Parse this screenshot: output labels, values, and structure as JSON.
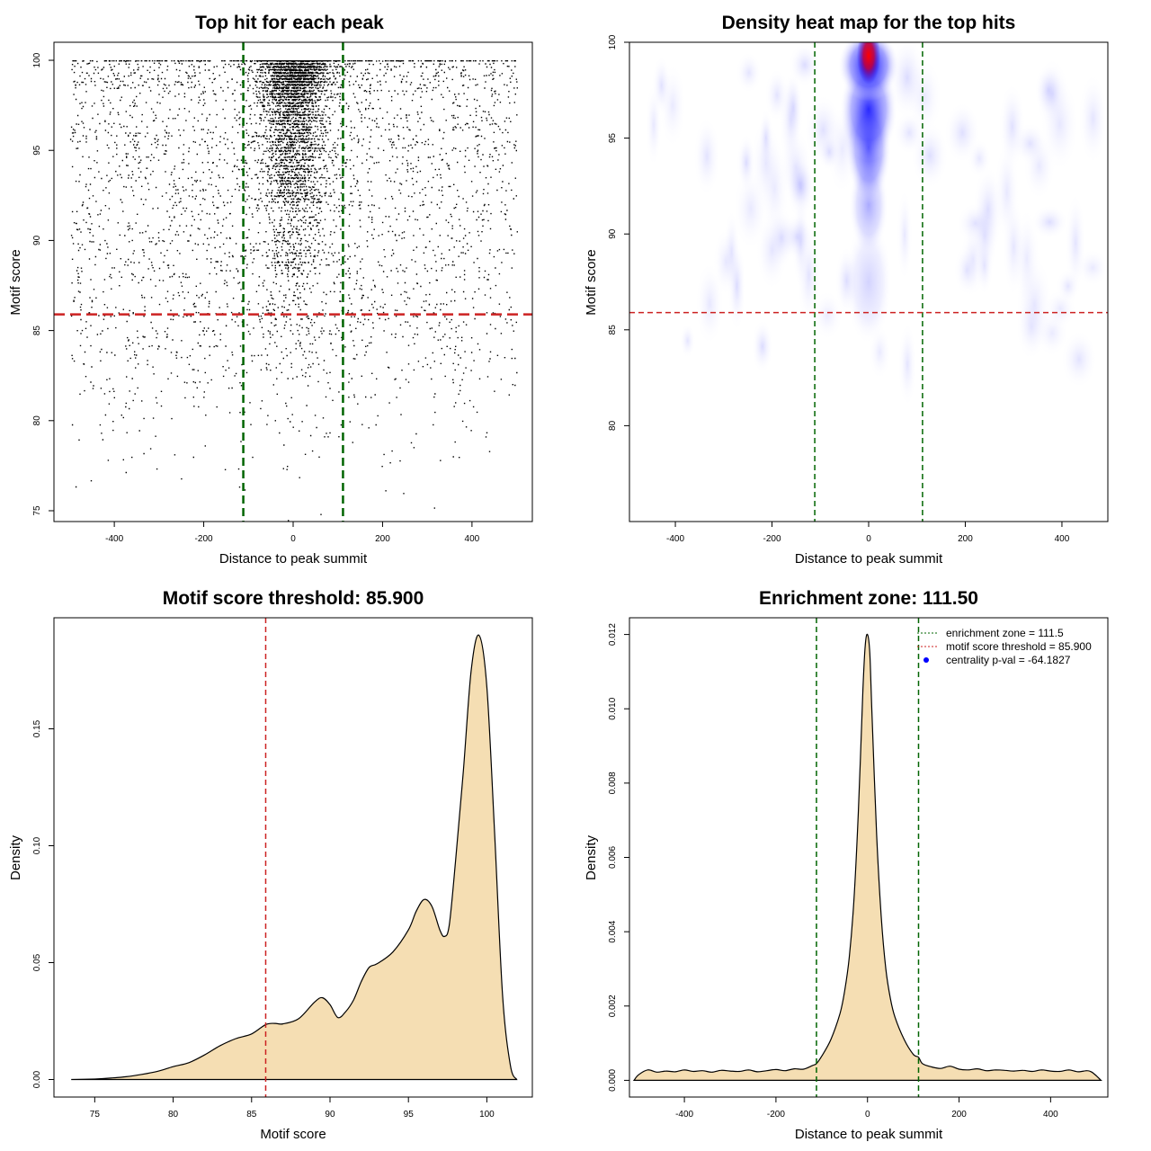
{
  "colors": {
    "green": "#006400",
    "red": "#cc2222",
    "fill": "#f5deb3",
    "point": "#000000",
    "heat_low": "#ffffff",
    "heat_mid": "#0000ff",
    "heat_high": "#ff0000",
    "legend_dot": "#0000ff"
  },
  "chart_data": [
    {
      "id": "scatter",
      "type": "scatter",
      "title": "Top hit for each peak",
      "xlabel": "Distance to peak summit",
      "ylabel": "Motif score",
      "xlim": [
        -535,
        535
      ],
      "ylim": [
        74.4,
        101
      ],
      "xticks": [
        -400,
        -200,
        0,
        200,
        400
      ],
      "yticks": [
        75,
        80,
        85,
        90,
        95,
        100
      ],
      "vlines": [
        -111.5,
        111.5
      ],
      "hline": 85.9,
      "points_described": "about 8000 motif hits; x spread uniformly over -500..500, strongly concentrated within +/-111.5 at high scores; scores 75-100 distributed like the motif score density"
    },
    {
      "id": "heatmap",
      "type": "heatmap",
      "title": "Density heat map for the top hits",
      "xlabel": "Distance to peak summit",
      "ylabel": "Motif score",
      "xlim": [
        -495,
        495
      ],
      "ylim": [
        75,
        100
      ],
      "xticks": [
        -400,
        -200,
        0,
        200,
        400
      ],
      "yticks": [
        80,
        85,
        90,
        95,
        100
      ],
      "vlines": [
        -111.5,
        111.5
      ],
      "hline": 85.9,
      "peak": {
        "x": 0,
        "y": 99.3
      }
    },
    {
      "id": "score_density",
      "type": "area",
      "title": "Motif score threshold: 85.900",
      "xlabel": "Motif score",
      "ylabel": "Density",
      "xlim": [
        72.4,
        102.9
      ],
      "ylim": [
        -0.0075,
        0.1975
      ],
      "xticks": [
        75,
        80,
        85,
        90,
        95,
        100
      ],
      "yticks": [
        0.0,
        0.05,
        0.1,
        0.15
      ],
      "ytick_labels": [
        "0.00",
        "0.05",
        "0.10",
        "0.15"
      ],
      "vline": 85.9,
      "x": [
        73.5,
        75,
        76,
        77,
        78,
        79,
        80,
        81,
        82,
        83,
        84,
        85,
        85.9,
        86.5,
        87,
        88,
        89,
        89.5,
        90,
        90.5,
        91,
        91.5,
        92,
        92.5,
        93,
        94,
        95,
        95.5,
        96,
        96.5,
        97,
        97.3,
        97.6,
        98,
        98.5,
        99,
        99.5,
        100,
        100.5,
        101,
        101.5,
        101.9
      ],
      "y": [
        0.0,
        0.0002,
        0.0006,
        0.0012,
        0.0022,
        0.0035,
        0.0055,
        0.0072,
        0.0105,
        0.0145,
        0.0175,
        0.0195,
        0.0235,
        0.024,
        0.0238,
        0.026,
        0.033,
        0.035,
        0.032,
        0.0265,
        0.029,
        0.034,
        0.042,
        0.048,
        0.0495,
        0.0545,
        0.064,
        0.072,
        0.077,
        0.074,
        0.064,
        0.0612,
        0.066,
        0.093,
        0.132,
        0.175,
        0.19,
        0.168,
        0.105,
        0.036,
        0.006,
        0.0
      ]
    },
    {
      "id": "distance_density",
      "type": "area",
      "title": "Enrichment zone: 111.50",
      "xlabel": "Distance to peak summit",
      "ylabel": "Density",
      "xlim": [
        -520,
        525
      ],
      "ylim": [
        -0.00045,
        0.01245
      ],
      "xticks": [
        -400,
        -200,
        0,
        200,
        400
      ],
      "yticks": [
        0.0,
        0.002,
        0.004,
        0.006,
        0.008,
        0.01,
        0.012
      ],
      "ytick_labels": [
        "0.000",
        "0.002",
        "0.004",
        "0.006",
        "0.008",
        "0.010",
        "0.012"
      ],
      "vlines": [
        -111.5,
        111.5
      ],
      "x": [
        -510,
        -500,
        -480,
        -460,
        -440,
        -420,
        -400,
        -380,
        -360,
        -340,
        -320,
        -300,
        -280,
        -260,
        -240,
        -220,
        -200,
        -180,
        -160,
        -140,
        -120,
        -111.5,
        -100,
        -80,
        -60,
        -50,
        -40,
        -30,
        -20,
        -10,
        -5,
        0,
        5,
        10,
        20,
        30,
        40,
        50,
        60,
        80,
        100,
        111.5,
        120,
        140,
        160,
        180,
        200,
        220,
        240,
        260,
        280,
        300,
        320,
        340,
        360,
        380,
        400,
        420,
        440,
        460,
        480,
        490,
        500,
        510
      ],
      "y": [
        0.0,
        0.00015,
        0.00028,
        0.00022,
        0.00025,
        0.00023,
        0.00028,
        0.00024,
        0.00026,
        0.00022,
        0.00027,
        0.00025,
        0.00024,
        0.00028,
        0.00023,
        0.00026,
        0.00029,
        0.00026,
        0.00031,
        0.0003,
        0.0004,
        0.00045,
        0.00065,
        0.0011,
        0.0018,
        0.0024,
        0.0033,
        0.0048,
        0.0072,
        0.0105,
        0.0117,
        0.012,
        0.0115,
        0.0098,
        0.0066,
        0.0044,
        0.003,
        0.0022,
        0.0017,
        0.0011,
        0.0007,
        0.00062,
        0.00045,
        0.00036,
        0.00032,
        0.00038,
        0.0003,
        0.00028,
        0.00031,
        0.00026,
        0.00028,
        0.00027,
        0.00025,
        0.00027,
        0.00024,
        0.00028,
        0.00025,
        0.00024,
        0.00028,
        0.00023,
        0.00026,
        0.00022,
        0.00012,
        0.0
      ]
    }
  ],
  "legend": {
    "items": [
      {
        "label": "enrichment zone = 111.5",
        "kind": "line-green"
      },
      {
        "label": "motif score threshold = 85.900",
        "kind": "line-red"
      },
      {
        "label": "centrality p-val = -64.1827",
        "kind": "dot-blue"
      }
    ]
  }
}
